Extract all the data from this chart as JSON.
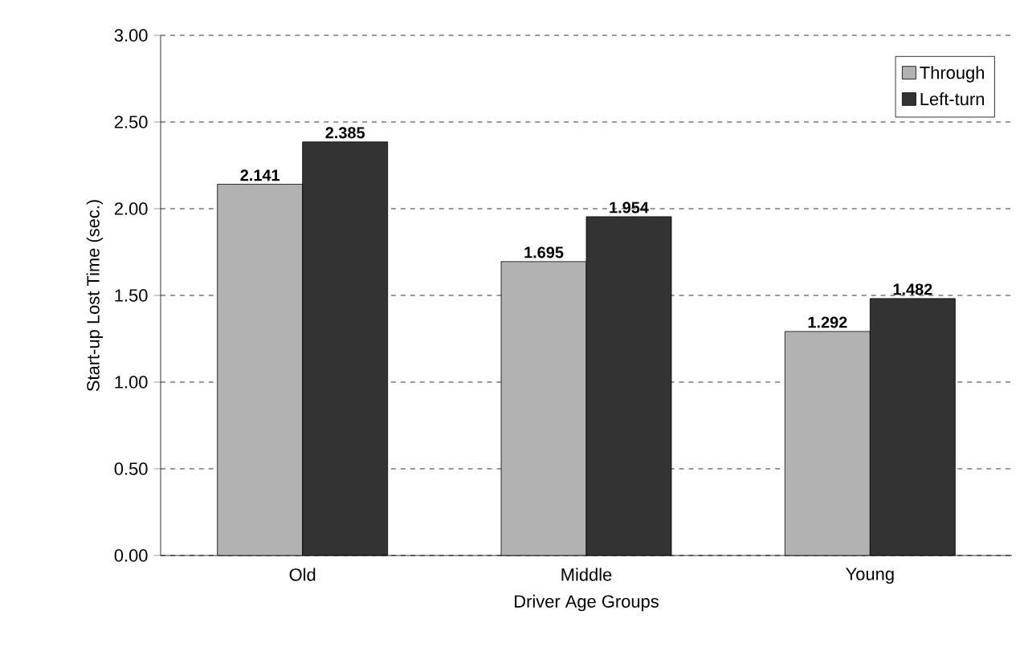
{
  "chart_data": {
    "type": "bar",
    "xlabel": "Driver Age Groups",
    "ylabel": "Start-up Lost Time (sec.)",
    "categories": [
      "Old",
      "Middle",
      "Young"
    ],
    "series": [
      {
        "name": "Through",
        "color": "#b2b2b2",
        "values": [
          2.141,
          1.695,
          1.292
        ]
      },
      {
        "name": "Left-turn",
        "color": "#333333",
        "values": [
          2.385,
          1.954,
          1.482
        ]
      }
    ],
    "ylim": [
      0,
      3
    ],
    "yticks": [
      {
        "value": 0,
        "label": "0.00"
      },
      {
        "value": 0.5,
        "label": "0.50"
      },
      {
        "value": 1,
        "label": "1.00"
      },
      {
        "value": 1.5,
        "label": "1.50"
      },
      {
        "value": 2,
        "label": "2.00"
      },
      {
        "value": 2.5,
        "label": "2.50"
      },
      {
        "value": 3,
        "label": "3.00"
      }
    ],
    "grid": "y",
    "legend": "top right",
    "data_labels": true
  }
}
